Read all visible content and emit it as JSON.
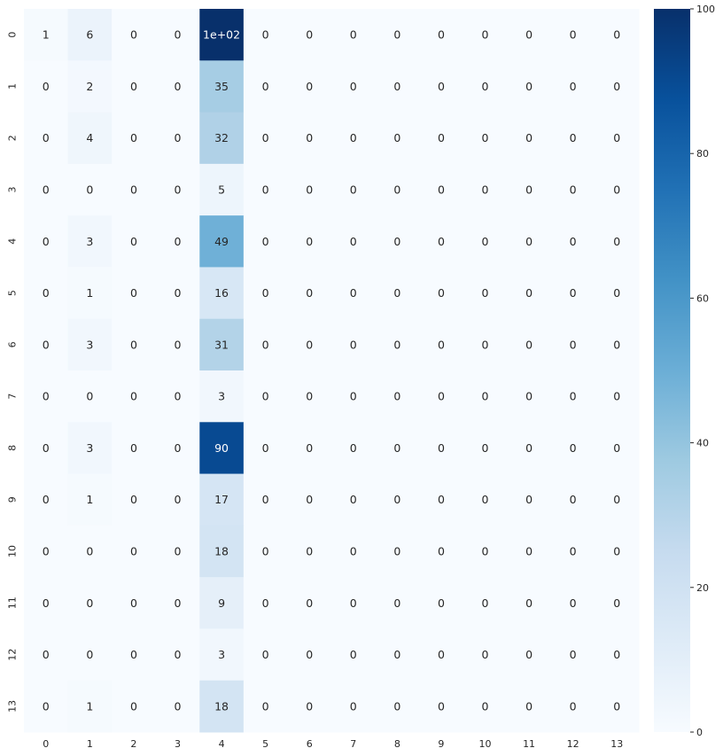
{
  "chart_data": {
    "type": "heatmap",
    "title": "",
    "xlabel": "",
    "ylabel": "",
    "x_ticks": [
      "0",
      "1",
      "2",
      "3",
      "4",
      "5",
      "6",
      "7",
      "8",
      "9",
      "10",
      "11",
      "12",
      "13"
    ],
    "y_ticks": [
      "0",
      "1",
      "2",
      "3",
      "4",
      "5",
      "6",
      "7",
      "8",
      "9",
      "10",
      "11",
      "12",
      "13"
    ],
    "values": [
      [
        1,
        6,
        0,
        0,
        102,
        0,
        0,
        0,
        0,
        0,
        0,
        0,
        0,
        0
      ],
      [
        0,
        2,
        0,
        0,
        35,
        0,
        0,
        0,
        0,
        0,
        0,
        0,
        0,
        0
      ],
      [
        0,
        4,
        0,
        0,
        32,
        0,
        0,
        0,
        0,
        0,
        0,
        0,
        0,
        0
      ],
      [
        0,
        0,
        0,
        0,
        5,
        0,
        0,
        0,
        0,
        0,
        0,
        0,
        0,
        0
      ],
      [
        0,
        3,
        0,
        0,
        49,
        0,
        0,
        0,
        0,
        0,
        0,
        0,
        0,
        0
      ],
      [
        0,
        1,
        0,
        0,
        16,
        0,
        0,
        0,
        0,
        0,
        0,
        0,
        0,
        0
      ],
      [
        0,
        3,
        0,
        0,
        31,
        0,
        0,
        0,
        0,
        0,
        0,
        0,
        0,
        0
      ],
      [
        0,
        0,
        0,
        0,
        3,
        0,
        0,
        0,
        0,
        0,
        0,
        0,
        0,
        0
      ],
      [
        0,
        3,
        0,
        0,
        90,
        0,
        0,
        0,
        0,
        0,
        0,
        0,
        0,
        0
      ],
      [
        0,
        1,
        0,
        0,
        17,
        0,
        0,
        0,
        0,
        0,
        0,
        0,
        0,
        0
      ],
      [
        0,
        0,
        0,
        0,
        18,
        0,
        0,
        0,
        0,
        0,
        0,
        0,
        0,
        0
      ],
      [
        0,
        0,
        0,
        0,
        9,
        0,
        0,
        0,
        0,
        0,
        0,
        0,
        0,
        0
      ],
      [
        0,
        0,
        0,
        0,
        3,
        0,
        0,
        0,
        0,
        0,
        0,
        0,
        0,
        0
      ],
      [
        0,
        1,
        0,
        0,
        18,
        0,
        0,
        0,
        0,
        0,
        0,
        0,
        0,
        0
      ]
    ],
    "annotations": [
      [
        "1",
        "6",
        "0",
        "0",
        "1e+02",
        "0",
        "0",
        "0",
        "0",
        "0",
        "0",
        "0",
        "0",
        "0"
      ],
      [
        "0",
        "2",
        "0",
        "0",
        "35",
        "0",
        "0",
        "0",
        "0",
        "0",
        "0",
        "0",
        "0",
        "0"
      ],
      [
        "0",
        "4",
        "0",
        "0",
        "32",
        "0",
        "0",
        "0",
        "0",
        "0",
        "0",
        "0",
        "0",
        "0"
      ],
      [
        "0",
        "0",
        "0",
        "0",
        "5",
        "0",
        "0",
        "0",
        "0",
        "0",
        "0",
        "0",
        "0",
        "0"
      ],
      [
        "0",
        "3",
        "0",
        "0",
        "49",
        "0",
        "0",
        "0",
        "0",
        "0",
        "0",
        "0",
        "0",
        "0"
      ],
      [
        "0",
        "1",
        "0",
        "0",
        "16",
        "0",
        "0",
        "0",
        "0",
        "0",
        "0",
        "0",
        "0",
        "0"
      ],
      [
        "0",
        "3",
        "0",
        "0",
        "31",
        "0",
        "0",
        "0",
        "0",
        "0",
        "0",
        "0",
        "0",
        "0"
      ],
      [
        "0",
        "0",
        "0",
        "0",
        "3",
        "0",
        "0",
        "0",
        "0",
        "0",
        "0",
        "0",
        "0",
        "0"
      ],
      [
        "0",
        "3",
        "0",
        "0",
        "90",
        "0",
        "0",
        "0",
        "0",
        "0",
        "0",
        "0",
        "0",
        "0"
      ],
      [
        "0",
        "1",
        "0",
        "0",
        "17",
        "0",
        "0",
        "0",
        "0",
        "0",
        "0",
        "0",
        "0",
        "0"
      ],
      [
        "0",
        "0",
        "0",
        "0",
        "18",
        "0",
        "0",
        "0",
        "0",
        "0",
        "0",
        "0",
        "0",
        "0"
      ],
      [
        "0",
        "0",
        "0",
        "0",
        "9",
        "0",
        "0",
        "0",
        "0",
        "0",
        "0",
        "0",
        "0",
        "0"
      ],
      [
        "0",
        "0",
        "0",
        "0",
        "3",
        "0",
        "0",
        "0",
        "0",
        "0",
        "0",
        "0",
        "0",
        "0"
      ],
      [
        "0",
        "1",
        "0",
        "0",
        "18",
        "0",
        "0",
        "0",
        "0",
        "0",
        "0",
        "0",
        "0",
        "0"
      ]
    ],
    "colormap": "Blues",
    "colorbar": {
      "range": [
        0,
        100
      ],
      "ticks": [
        "0",
        "20",
        "40",
        "60",
        "80",
        "100"
      ],
      "colors": [
        "#f7fbff",
        "#deebf7",
        "#c6dbef",
        "#9ecae1",
        "#6baed6",
        "#4292c6",
        "#2171b5",
        "#08519c",
        "#08306b"
      ]
    },
    "grid": false,
    "legend": "none"
  }
}
